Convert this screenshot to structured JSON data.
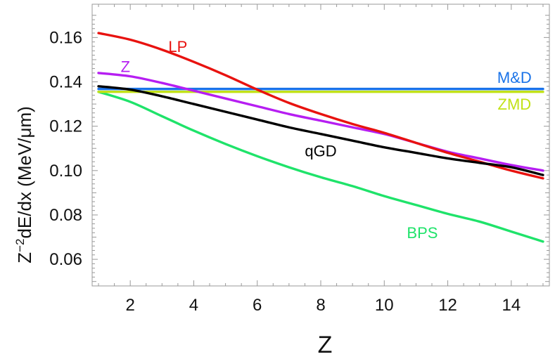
{
  "chart_data": {
    "type": "line",
    "title": "",
    "xlabel": "Z",
    "ylabel_main": "Z",
    "ylabel_sup": "−2",
    "ylabel_rest": "dE/dx (MeV/μm)",
    "xlim": [
      0.8,
      15.2
    ],
    "ylim": [
      0.048,
      0.175
    ],
    "xticks": [
      2,
      4,
      6,
      8,
      10,
      12,
      14
    ],
    "yticks": [
      0.06,
      0.08,
      0.1,
      0.12,
      0.14,
      0.16
    ],
    "ytick_labels": [
      "0.06",
      "0.08",
      "0.10",
      "0.12",
      "0.14",
      "0.16"
    ],
    "grid": false,
    "legend": "inline-labels",
    "x": [
      1,
      2,
      3,
      4,
      5,
      6,
      7,
      8,
      9,
      10,
      11,
      12,
      13,
      14,
      15
    ],
    "series": [
      {
        "name": "LP",
        "color": "#e8120f",
        "values": [
          0.162,
          0.159,
          0.1545,
          0.149,
          0.143,
          0.1365,
          0.1305,
          0.1255,
          0.121,
          0.117,
          0.1125,
          0.108,
          0.104,
          0.1,
          0.0965
        ],
        "label_at": [
          3.5,
          0.1535
        ]
      },
      {
        "name": "Z",
        "color": "#b61ef2",
        "values": [
          0.144,
          0.1425,
          0.1395,
          0.136,
          0.1325,
          0.129,
          0.1255,
          0.1225,
          0.1195,
          0.1165,
          0.1125,
          0.1085,
          0.1055,
          0.1025,
          0.1
        ],
        "label_at": [
          1.85,
          0.1445
        ]
      },
      {
        "name": "M&D",
        "color": "#1a73e8",
        "values": [
          0.1368,
          0.1368,
          0.1368,
          0.1368,
          0.1368,
          0.1368,
          0.1368,
          0.1368,
          0.1368,
          0.1368,
          0.1368,
          0.1368,
          0.1368,
          0.1368,
          0.1368
        ],
        "label_at": [
          14.1,
          0.1395
        ]
      },
      {
        "name": "ZMD",
        "color": "#c2e217",
        "values": [
          0.1355,
          0.1355,
          0.1355,
          0.1355,
          0.1355,
          0.1355,
          0.1355,
          0.1355,
          0.1355,
          0.1355,
          0.1355,
          0.1355,
          0.1355,
          0.1355,
          0.1355
        ],
        "label_at": [
          14.1,
          0.1275
        ]
      },
      {
        "name": "qGD",
        "color": "#000000",
        "values": [
          0.138,
          0.1365,
          0.1335,
          0.13,
          0.1265,
          0.123,
          0.1195,
          0.1165,
          0.1135,
          0.1105,
          0.108,
          0.1055,
          0.1035,
          0.1015,
          0.098
        ],
        "label_at": [
          8.0,
          0.1065
        ]
      },
      {
        "name": "BPS",
        "color": "#1fe36a",
        "values": [
          0.1355,
          0.131,
          0.1245,
          0.118,
          0.112,
          0.1065,
          0.1015,
          0.097,
          0.093,
          0.0885,
          0.0845,
          0.0805,
          0.077,
          0.0725,
          0.068
        ],
        "label_at": [
          11.2,
          0.0695
        ]
      }
    ]
  }
}
